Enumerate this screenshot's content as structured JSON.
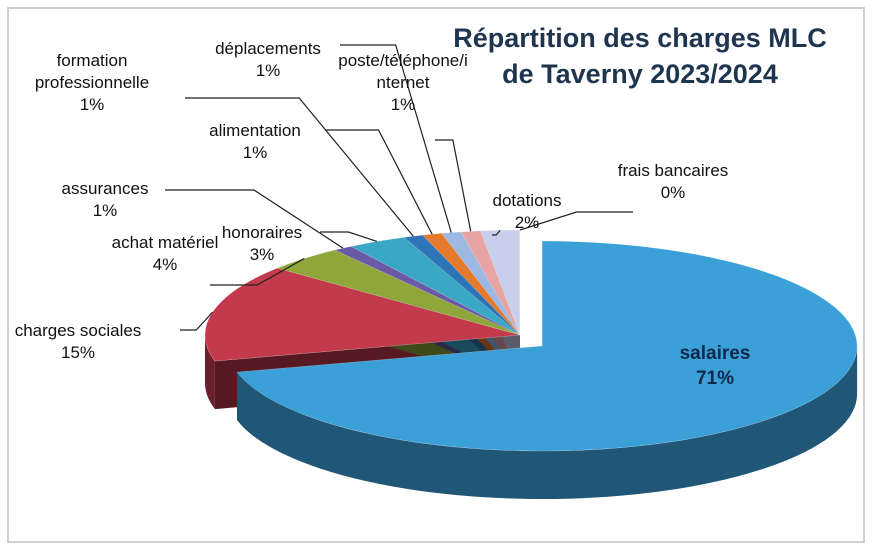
{
  "chart_data": {
    "type": "pie",
    "title": "Répartition des charges MLC de Taverny 2023/2024",
    "categories": [
      "salaires",
      "charges sociales",
      "achat matériel",
      "assurances",
      "honoraires",
      "formation professionnelle",
      "alimentation",
      "déplacements",
      "poste/téléphone/internet",
      "dotations",
      "frais bancaires"
    ],
    "values": [
      71,
      15,
      4,
      1,
      3,
      1,
      1,
      1,
      1,
      2,
      0
    ],
    "value_labels": [
      "71%",
      "15%",
      "4%",
      "1%",
      "3%",
      "1%",
      "1%",
      "1%",
      "1%",
      "2%",
      "0%"
    ],
    "colors": [
      "#3b9fd8",
      "#c23a4c",
      "#8ea63a",
      "#6a5aa6",
      "#3aa7c4",
      "#2e74b8",
      "#e57a2c",
      "#9db8e2",
      "#e8a3a3",
      "#c8cfea",
      "#8fbf3a"
    ],
    "exploded": [
      0
    ]
  }
}
